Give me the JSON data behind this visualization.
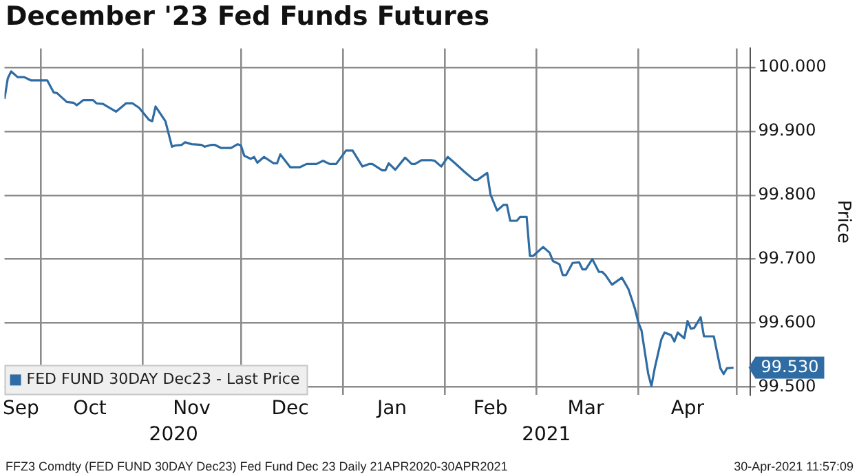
{
  "chart_data": {
    "type": "line",
    "title": "December '23 Fed Funds Futures",
    "ylabel": "Price",
    "x": [
      "2020-09-20",
      "2020-09-21",
      "2020-09-22",
      "2020-09-24",
      "2020-09-26",
      "2020-09-28",
      "2020-10-03",
      "2020-10-05",
      "2020-10-06",
      "2020-10-09",
      "2020-10-11",
      "2020-10-12",
      "2020-10-14",
      "2020-10-17",
      "2020-10-18",
      "2020-10-20",
      "2020-10-24",
      "2020-10-27",
      "2020-10-29",
      "2020-10-31",
      "2020-11-03",
      "2020-11-04",
      "2020-11-05",
      "2020-11-08",
      "2020-11-10",
      "2020-11-11",
      "2020-11-13",
      "2020-11-14",
      "2020-11-16",
      "2020-11-19",
      "2020-11-20",
      "2020-11-22",
      "2020-11-23",
      "2020-11-25",
      "2020-11-28",
      "2020-11-30",
      "2020-12-01",
      "2020-12-02",
      "2020-12-04",
      "2020-12-05",
      "2020-12-06",
      "2020-12-08",
      "2020-12-11",
      "2020-12-12",
      "2020-12-13",
      "2020-12-16",
      "2020-12-19",
      "2020-12-21",
      "2020-12-24",
      "2020-12-26",
      "2020-12-28",
      "2020-12-30",
      "2021-01-02",
      "2021-01-04",
      "2021-01-07",
      "2021-01-09",
      "2021-01-10",
      "2021-01-13",
      "2021-01-14",
      "2021-01-15",
      "2021-01-17",
      "2021-01-20",
      "2021-01-22",
      "2021-01-23",
      "2021-01-25",
      "2021-01-28",
      "2021-01-29",
      "2021-01-31",
      "2021-02-02",
      "2021-02-04",
      "2021-02-07",
      "2021-02-10",
      "2021-02-11",
      "2021-02-14",
      "2021-02-15",
      "2021-02-17",
      "2021-02-19",
      "2021-02-20",
      "2021-02-21",
      "2021-02-23",
      "2021-02-24",
      "2021-02-26",
      "2021-02-27",
      "2021-02-28",
      "2021-03-03",
      "2021-03-05",
      "2021-03-06",
      "2021-03-08",
      "2021-03-09",
      "2021-03-10",
      "2021-03-12",
      "2021-03-14",
      "2021-03-15",
      "2021-03-16",
      "2021-03-18",
      "2021-03-20",
      "2021-03-21",
      "2021-03-22",
      "2021-03-24",
      "2021-03-27",
      "2021-03-29",
      "2021-03-31",
      "2021-04-01",
      "2021-04-02",
      "2021-04-04",
      "2021-04-05",
      "2021-04-06",
      "2021-04-08",
      "2021-04-09",
      "2021-04-11",
      "2021-04-12",
      "2021-04-13",
      "2021-04-15",
      "2021-04-16",
      "2021-04-17",
      "2021-04-18",
      "2021-04-20",
      "2021-04-21",
      "2021-04-24",
      "2021-04-26",
      "2021-04-27",
      "2021-04-28",
      "2021-04-30"
    ],
    "series": [
      {
        "name": "FED FUND 30DAY Dec23 - Last Price",
        "color": "#2f6ca3",
        "values": [
          99.951,
          99.983,
          99.994,
          99.985,
          99.985,
          99.98,
          99.98,
          99.961,
          99.96,
          99.946,
          99.945,
          99.941,
          99.949,
          99.949,
          99.944,
          99.943,
          99.931,
          99.944,
          99.944,
          99.937,
          99.918,
          99.916,
          99.939,
          99.916,
          99.876,
          99.878,
          99.879,
          99.883,
          99.88,
          99.879,
          99.876,
          99.879,
          99.879,
          99.874,
          99.874,
          99.88,
          99.878,
          99.862,
          99.857,
          99.86,
          99.851,
          99.86,
          99.85,
          99.85,
          99.864,
          99.844,
          99.844,
          99.849,
          99.849,
          99.854,
          99.849,
          99.849,
          99.87,
          99.87,
          99.845,
          99.849,
          99.849,
          99.839,
          99.839,
          99.85,
          99.84,
          99.859,
          99.849,
          99.849,
          99.855,
          99.855,
          99.854,
          99.845,
          99.86,
          99.851,
          99.837,
          99.824,
          99.824,
          99.835,
          99.801,
          99.776,
          99.785,
          99.785,
          99.76,
          99.76,
          99.766,
          99.766,
          99.705,
          99.705,
          99.719,
          99.71,
          99.697,
          99.692,
          99.675,
          99.675,
          99.694,
          99.695,
          99.684,
          99.684,
          99.7,
          99.68,
          99.68,
          99.675,
          99.66,
          99.671,
          99.653,
          99.622,
          99.601,
          99.588,
          99.521,
          99.501,
          99.529,
          99.574,
          99.585,
          99.581,
          99.571,
          99.585,
          99.576,
          99.603,
          99.591,
          99.592,
          99.609,
          99.579,
          99.579,
          99.529,
          99.52,
          99.529,
          99.53
        ]
      }
    ],
    "xlim": [
      "2020-09-20",
      "2021-05-05"
    ],
    "xticks": [
      {
        "value": "2020-09-25",
        "label": "Sep"
      },
      {
        "value": "2020-10-01",
        "label": null
      },
      {
        "value": "2020-10-16",
        "label": "Oct"
      },
      {
        "value": "2020-11-01",
        "label": null
      },
      {
        "value": "2020-11-16",
        "label": "Nov"
      },
      {
        "value": "2020-12-01",
        "label": null
      },
      {
        "value": "2020-12-16",
        "label": "Dec"
      },
      {
        "value": "2021-01-01",
        "label": null
      },
      {
        "value": "2021-01-16",
        "label": "Jan"
      },
      {
        "value": "2021-02-01",
        "label": null
      },
      {
        "value": "2021-02-15",
        "label": "Feb"
      },
      {
        "value": "2021-03-01",
        "label": null
      },
      {
        "value": "2021-03-16",
        "label": "Mar"
      },
      {
        "value": "2021-04-01",
        "label": null
      },
      {
        "value": "2021-04-16",
        "label": "Apr"
      },
      {
        "value": "2021-05-01",
        "label": null
      }
    ],
    "ylim": [
      99.487,
      100.03
    ],
    "yticks": [
      {
        "value": 99.5,
        "label": "99.500"
      },
      {
        "value": 99.6,
        "label": "99.600"
      },
      {
        "value": 99.7,
        "label": "99.700"
      },
      {
        "value": 99.8,
        "label": "99.800"
      },
      {
        "value": 99.9,
        "label": "99.900"
      },
      {
        "value": 100,
        "label": "100.000"
      }
    ],
    "grid": true,
    "legend": "bottom left",
    "marker": "none",
    "line_style": "solid",
    "annotations": [
      "2020",
      "2021",
      {
        "text": "99.530",
        "x": "2021-04-30",
        "y": 99.53
      },
      "FFZ3 Comdty (FED FUND 30DAY Dec23) Fed Fund Dec 23 Daily 21APR2020-30APR2021",
      "30-Apr-2021 11:57:09"
    ]
  }
}
